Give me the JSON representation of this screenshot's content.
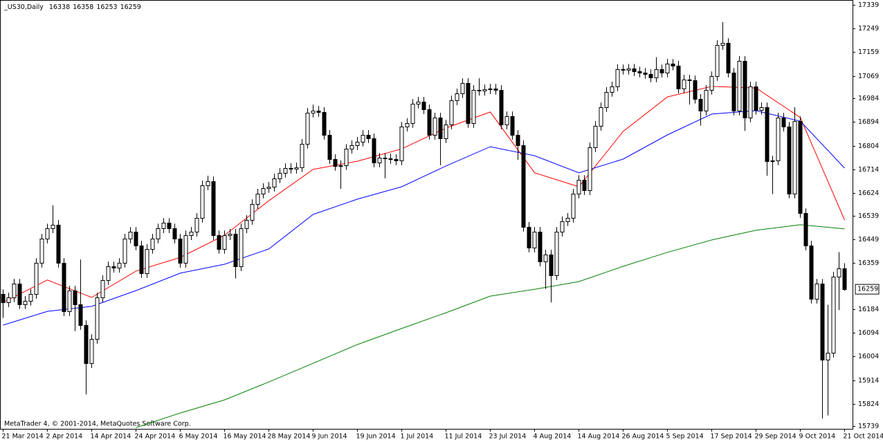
{
  "chart_data": {
    "type": "candlestick",
    "title": "_US30,Daily",
    "credit": "MetaTrader 4, © 2001-2014, MetaQuotes Software Corp.",
    "categories": [
      "21 Mar 2014",
      null,
      null,
      null,
      null,
      null,
      null,
      null,
      "2 Apr 2014",
      null,
      null,
      null,
      null,
      null,
      null,
      null,
      "14 Apr 2014",
      null,
      null,
      null,
      null,
      null,
      null,
      null,
      "24 Apr 2014",
      null,
      null,
      null,
      null,
      null,
      null,
      null,
      "6 May 2014",
      null,
      null,
      null,
      null,
      null,
      null,
      null,
      "16 May 2014",
      null,
      null,
      null,
      null,
      null,
      null,
      null,
      "28 May 2014",
      null,
      null,
      null,
      null,
      null,
      null,
      null,
      "9 Jun 2014",
      null,
      null,
      null,
      null,
      null,
      null,
      null,
      "19 Jun 2014",
      null,
      null,
      null,
      null,
      null,
      null,
      null,
      "1 Jul 2014",
      null,
      null,
      null,
      null,
      null,
      null,
      null,
      "11 Jul 2014",
      null,
      null,
      null,
      null,
      null,
      null,
      null,
      "23 Jul 2014",
      null,
      null,
      null,
      null,
      null,
      null,
      null,
      "4 Aug 2014",
      null,
      null,
      null,
      null,
      null,
      null,
      null,
      "14 Aug 2014",
      null,
      null,
      null,
      null,
      null,
      null,
      null,
      "26 Aug 2014",
      null,
      null,
      null,
      null,
      null,
      null,
      null,
      "5 Sep 2014",
      null,
      null,
      null,
      null,
      null,
      null,
      null,
      "17 Sep 2014",
      null,
      null,
      null,
      null,
      null,
      null,
      null,
      "29 Sep 2014",
      null,
      null,
      null,
      null,
      null,
      null,
      null,
      "9 Oct 2014",
      null,
      null,
      null,
      null,
      null,
      null,
      null,
      "21 Oct 2014"
    ],
    "open": [
      16240,
      16209,
      16228,
      16280,
      16202,
      16215,
      16241,
      16359,
      16451,
      16490,
      16504,
      16359,
      16175,
      16254,
      16202,
      16123,
      15978,
      16070,
      16228,
      16294,
      16346,
      16340,
      16359,
      16451,
      16477,
      16425,
      16320,
      16412,
      16451,
      16490,
      16511,
      16490,
      16451,
      16359,
      16464,
      16477,
      16530,
      16653,
      16669,
      16464,
      16412,
      16464,
      16470,
      16346,
      16490,
      16522,
      16582,
      16622,
      16643,
      16648,
      16680,
      16701,
      16719,
      16716,
      16722,
      16811,
      16929,
      16937,
      16932,
      16845,
      16753,
      16727,
      16730,
      16792,
      16806,
      16819,
      16845,
      16832,
      16740,
      16758,
      16756,
      16753,
      16748,
      16876,
      16890,
      16963,
      16971,
      16942,
      16845,
      16911,
      16832,
      16884,
      16976,
      17003,
      17042,
      16890,
      17016,
      17012,
      17018,
      17021,
      17016,
      16884,
      16916,
      16845,
      16806,
      16496,
      16417,
      16477,
      16364,
      16391,
      16312,
      16477,
      16517,
      16530,
      16622,
      16674,
      16635,
      16798,
      16879,
      16950,
      17008,
      17029,
      17094,
      17092,
      17096,
      17086,
      17081,
      17076,
      17063,
      17094,
      17081,
      17115,
      17108,
      17021,
      17055,
      17052,
      16982,
      16937,
      17016,
      17068,
      17186,
      17194,
      17081,
      16937,
      17126,
      16911,
      17029,
      16940,
      16950,
      16745,
      16748,
      16911,
      16876,
      16622,
      16897,
      16548,
      16425,
      16223,
      16280,
      15992,
      16018,
      16307,
      16338
    ],
    "high": [
      16258,
      16246,
      16298,
      16298,
      16233,
      16259,
      16377,
      16469,
      16508,
      16577,
      16522,
      16377,
      16272,
      16272,
      16372,
      16141,
      16088,
      16246,
      16312,
      16364,
      16364,
      16377,
      16469,
      16495,
      16495,
      16443,
      16430,
      16469,
      16508,
      16529,
      16529,
      16508,
      16469,
      16482,
      16495,
      16548,
      16671,
      16690,
      16687,
      16482,
      16482,
      16488,
      16488,
      16508,
      16540,
      16600,
      16640,
      16661,
      16666,
      16698,
      16719,
      16737,
      16737,
      16740,
      16829,
      16947,
      16960,
      16955,
      16950,
      16863,
      16771,
      16748,
      16810,
      16824,
      16837,
      16863,
      16863,
      16850,
      16776,
      16776,
      16774,
      16771,
      16894,
      16908,
      16981,
      16989,
      16989,
      16960,
      16929,
      16929,
      16902,
      16994,
      17021,
      17060,
      17060,
      17034,
      17060,
      17036,
      17039,
      17039,
      17034,
      16934,
      16934,
      16863,
      16824,
      16514,
      16495,
      16495,
      16409,
      16409,
      16495,
      16535,
      16548,
      16640,
      16692,
      16692,
      16816,
      16897,
      16968,
      17026,
      17047,
      17112,
      17112,
      17114,
      17114,
      17104,
      17099,
      17094,
      17140,
      17112,
      17133,
      17133,
      17126,
      17073,
      17073,
      17070,
      17000,
      17034,
      17086,
      17204,
      17273,
      17212,
      17099,
      17144,
      17144,
      17047,
      17047,
      16968,
      16968,
      16766,
      16929,
      16929,
      16894,
      16950,
      16915,
      16566,
      16443,
      16298,
      16298,
      16200,
      16325,
      16400,
      16358
    ],
    "low": [
      16150,
      16191,
      16210,
      16184,
      16184,
      16197,
      16223,
      16341,
      16433,
      16472,
      16341,
      16157,
      16157,
      16100,
      16105,
      15860,
      15960,
      16052,
      16210,
      16276,
      16322,
      16322,
      16341,
      16433,
      16407,
      16302,
      16302,
      16394,
      16433,
      16472,
      16472,
      16433,
      16341,
      16341,
      16446,
      16459,
      16512,
      16635,
      16446,
      16394,
      16394,
      16446,
      16300,
      16328,
      16472,
      16504,
      16564,
      16604,
      16625,
      16630,
      16662,
      16683,
      16698,
      16698,
      16704,
      16793,
      16911,
      16914,
      16827,
      16735,
      16709,
      16640,
      16712,
      16774,
      16788,
      16801,
      16814,
      16722,
      16722,
      16680,
      16735,
      16730,
      16730,
      16858,
      16872,
      16945,
      16924,
      16827,
      16827,
      16730,
      16814,
      16866,
      16958,
      16985,
      16872,
      16872,
      16994,
      16994,
      17000,
      16998,
      16866,
      16866,
      16827,
      16750,
      16478,
      16399,
      16399,
      16346,
      16260,
      16209,
      16294,
      16459,
      16499,
      16512,
      16604,
      16617,
      16617,
      16780,
      16861,
      16932,
      16990,
      17011,
      17074,
      17074,
      17068,
      17063,
      17058,
      17045,
      17045,
      17063,
      17063,
      17090,
      17003,
      17003,
      16960,
      16964,
      16880,
      16919,
      16998,
      17050,
      17168,
      17063,
      16919,
      16919,
      16860,
      16893,
      16922,
      16922,
      16690,
      16620,
      16730,
      16858,
      16604,
      16604,
      16530,
      16407,
      16205,
      16205,
      15768,
      15780,
      16000,
      16180,
      16253
    ],
    "close": [
      16209,
      16228,
      16280,
      16202,
      16215,
      16241,
      16359,
      16451,
      16490,
      16504,
      16359,
      16175,
      16254,
      16202,
      16123,
      15978,
      16070,
      16228,
      16294,
      16346,
      16340,
      16359,
      16451,
      16477,
      16425,
      16320,
      16412,
      16451,
      16490,
      16511,
      16490,
      16451,
      16359,
      16464,
      16477,
      16530,
      16653,
      16669,
      16464,
      16412,
      16464,
      16470,
      16346,
      16490,
      16522,
      16582,
      16622,
      16643,
      16648,
      16680,
      16701,
      16719,
      16716,
      16722,
      16811,
      16929,
      16937,
      16932,
      16845,
      16753,
      16727,
      16730,
      16792,
      16806,
      16819,
      16845,
      16832,
      16740,
      16758,
      16756,
      16753,
      16748,
      16876,
      16890,
      16963,
      16971,
      16942,
      16845,
      16911,
      16832,
      16884,
      16976,
      17003,
      17042,
      16890,
      17016,
      17012,
      17018,
      17021,
      17016,
      16884,
      16916,
      16845,
      16806,
      16496,
      16417,
      16477,
      16364,
      16391,
      16312,
      16477,
      16517,
      16530,
      16622,
      16674,
      16635,
      16798,
      16879,
      16950,
      17008,
      17029,
      17094,
      17092,
      17096,
      17086,
      17081,
      17076,
      17063,
      17094,
      17081,
      17115,
      17108,
      17021,
      17055,
      17052,
      16982,
      16937,
      17016,
      17068,
      17186,
      17194,
      17081,
      16937,
      17126,
      16911,
      17029,
      16940,
      16950,
      16745,
      16748,
      16911,
      16876,
      16622,
      16897,
      16548,
      16425,
      16223,
      16280,
      15992,
      16018,
      16307,
      16338,
      16259
    ],
    "lines": [
      {
        "color": "#ff0000",
        "x": [
          "21 Mar 2014",
          "2 Apr 2014",
          "14 Apr 2014",
          "24 Apr 2014",
          "6 May 2014",
          "16 May 2014",
          "28 May 2014",
          "9 Jun 2014",
          "19 Jun 2014",
          "1 Jul 2014",
          "11 Jul 2014",
          "23 Jul 2014",
          "4 Aug 2014",
          "14 Aug 2014",
          "26 Aug 2014",
          "5 Sep 2014",
          "17 Sep 2014",
          "29 Sep 2014",
          "9 Oct 2014",
          "21 Oct 2014"
        ],
        "values": [
          16209,
          16294,
          16228,
          16328,
          16380,
          16464,
          16595,
          16714,
          16745,
          16792,
          16871,
          16932,
          16701,
          16648,
          16858,
          16989,
          17029,
          17023,
          16911,
          16522
        ]
      },
      {
        "color": "#0000ff",
        "x": [
          "21 Mar 2014",
          "2 Apr 2014",
          "14 Apr 2014",
          "24 Apr 2014",
          "6 May 2014",
          "16 May 2014",
          "28 May 2014",
          "9 Jun 2014",
          "19 Jun 2014",
          "1 Jul 2014",
          "11 Jul 2014",
          "23 Jul 2014",
          "4 Aug 2014",
          "14 Aug 2014",
          "26 Aug 2014",
          "5 Sep 2014",
          "17 Sep 2014",
          "29 Sep 2014",
          "9 Oct 2014",
          "21 Oct 2014"
        ],
        "values": [
          16123,
          16175,
          16194,
          16254,
          16320,
          16354,
          16412,
          16543,
          16601,
          16648,
          16727,
          16800,
          16766,
          16701,
          16753,
          16845,
          16924,
          16937,
          16897,
          16719
        ]
      },
      {
        "color": "#008000",
        "x": [
          "24 Apr 2014",
          "6 May 2014",
          "16 May 2014",
          "28 May 2014",
          "9 Jun 2014",
          "19 Jun 2014",
          "1 Jul 2014",
          "11 Jul 2014",
          "23 Jul 2014",
          "4 Aug 2014",
          "14 Aug 2014",
          "26 Aug 2014",
          "5 Sep 2014",
          "17 Sep 2014",
          "29 Sep 2014",
          "9 Oct 2014",
          "21 Oct 2014"
        ],
        "values": [
          15734,
          15789,
          15839,
          15907,
          15978,
          16049,
          16110,
          16170,
          16233,
          16259,
          16288,
          16346,
          16399,
          16446,
          16483,
          16504,
          16488
        ]
      }
    ],
    "ylim": [
      15729,
      17357
    ],
    "yticks": [
      17339,
      17249,
      17159,
      17069,
      16984,
      16894,
      16804,
      16714,
      16624,
      16539,
      16449,
      16359,
      16184,
      16094,
      16004,
      15914,
      15824,
      15739
    ]
  }
}
